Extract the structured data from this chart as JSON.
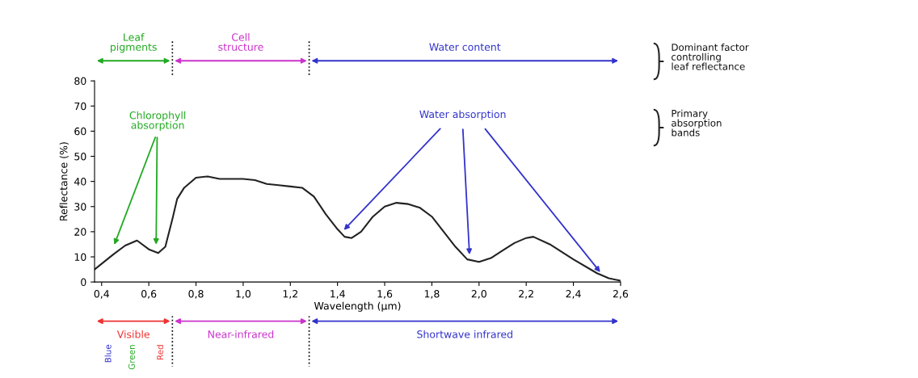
{
  "chart_data": {
    "type": "line",
    "xlabel": "Wavelength (μm)",
    "ylabel": "Reflectance (%)",
    "xlim": [
      0.37,
      2.6
    ],
    "ylim": [
      0,
      80
    ],
    "xticks": [
      {
        "value": 0.4,
        "label": "0,4"
      },
      {
        "value": 0.6,
        "label": "0,6"
      },
      {
        "value": 0.8,
        "label": "0,8"
      },
      {
        "value": 1.0,
        "label": "1,0"
      },
      {
        "value": 1.2,
        "label": "1,2"
      },
      {
        "value": 1.4,
        "label": "1,4"
      },
      {
        "value": 1.6,
        "label": "1,6"
      },
      {
        "value": 1.8,
        "label": "1,8"
      },
      {
        "value": 2.0,
        "label": "2,0"
      },
      {
        "value": 2.2,
        "label": "2,2"
      },
      {
        "value": 2.4,
        "label": "2,4"
      },
      {
        "value": 2.6,
        "label": "2,6"
      }
    ],
    "yticks": [
      0,
      10,
      20,
      30,
      40,
      50,
      60,
      70,
      80
    ],
    "grid": false,
    "legend": false,
    "marker": "none",
    "line_style": "solid",
    "series": [
      {
        "color": "#222222",
        "x": [
          0.37,
          0.45,
          0.5,
          0.55,
          0.6,
          0.64,
          0.67,
          0.7,
          0.72,
          0.75,
          0.8,
          0.85,
          0.9,
          1.0,
          1.05,
          1.1,
          1.15,
          1.2,
          1.25,
          1.3,
          1.35,
          1.4,
          1.43,
          1.46,
          1.5,
          1.55,
          1.6,
          1.65,
          1.7,
          1.75,
          1.8,
          1.85,
          1.9,
          1.95,
          2.0,
          2.05,
          2.1,
          2.15,
          2.2,
          2.23,
          2.3,
          2.4,
          2.5,
          2.55,
          2.6
        ],
        "values": [
          5,
          11,
          14.5,
          16.5,
          13,
          11.5,
          14,
          25,
          33,
          37.5,
          41.5,
          42,
          41,
          41,
          40.5,
          39,
          38.5,
          38,
          37.5,
          34,
          27,
          21,
          18,
          17.5,
          20,
          26,
          30,
          31.5,
          31,
          29.5,
          26,
          20,
          14,
          9,
          8,
          9.5,
          12.5,
          15.5,
          17.5,
          18,
          15,
          9,
          3.5,
          1.5,
          0.5
        ]
      }
    ],
    "annotations": [
      "Leaf\npigments",
      "Cell\nstructure",
      "Water content",
      "Chlorophyll\nabsorption",
      {
        "text": "Water absorption",
        "x": 1.96,
        "y": 10
      },
      "Visible",
      "Near-infrared",
      "Shortwave infrared",
      "Blue",
      "Green",
      "Red",
      "Dominant factor\ncontrolling\nleaf reflectance",
      "Primary\nabsorption\nbands"
    ]
  }
}
